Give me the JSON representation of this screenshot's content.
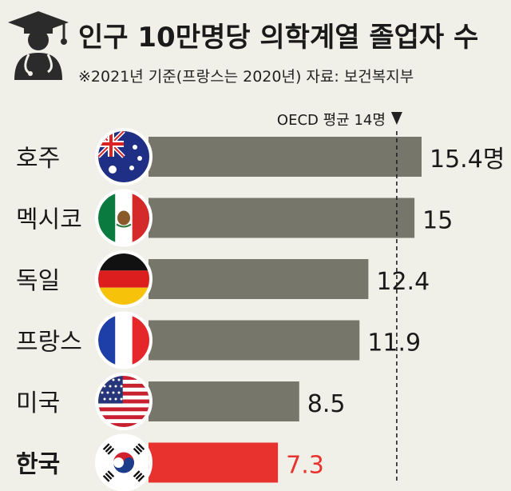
{
  "header": {
    "title": "인구 10만명당 의학계열 졸업자 수",
    "subtitle": "※2021년 기준(프랑스는 2020년)  자료: 보건복지부",
    "icon": "doctor-graduate-icon"
  },
  "chart_data": {
    "type": "bar",
    "orientation": "horizontal",
    "title": "인구 10만명당 의학계열 졸업자 수",
    "note": "※2021년 기준(프랑스는 2020년)  자료: 보건복지부",
    "categories": [
      "호주",
      "멕시코",
      "독일",
      "프랑스",
      "미국",
      "한국"
    ],
    "values": [
      15.4,
      15,
      12.4,
      11.9,
      8.5,
      7.3
    ],
    "value_labels": [
      "15.4명",
      "15",
      "12.4",
      "11.9",
      "8.5",
      "7.3"
    ],
    "flags": [
      "australia-flag-icon",
      "mexico-flag-icon",
      "germany-flag-icon",
      "france-flag-icon",
      "usa-flag-icon",
      "korea-flag-icon"
    ],
    "highlight": "한국",
    "reference_line": {
      "value": 14,
      "label": "OECD 평균 14명"
    },
    "xlim": [
      0,
      16
    ],
    "colors": {
      "bar": "#77766a",
      "highlight": "#e8322d",
      "background": "#f1f0e8"
    }
  }
}
